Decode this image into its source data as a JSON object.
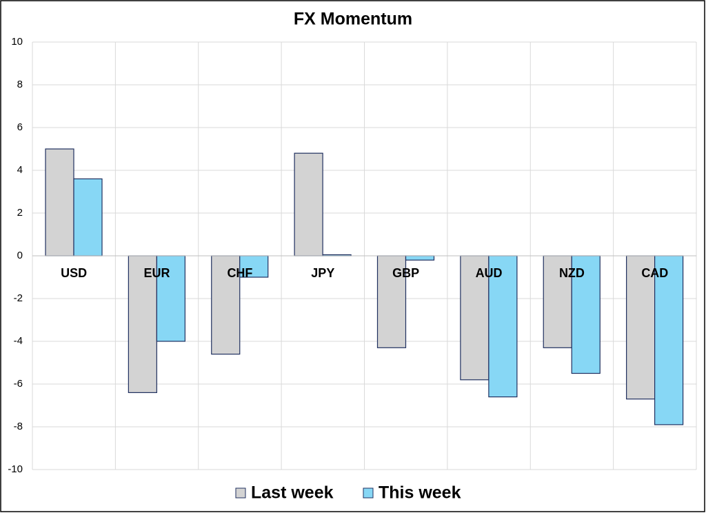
{
  "chart_data": {
    "type": "bar",
    "title": "FX Momentum",
    "categories": [
      "USD",
      "EUR",
      "CHF",
      "JPY",
      "GBP",
      "AUD",
      "NZD",
      "CAD"
    ],
    "series": [
      {
        "name": "Last week",
        "color": "#d3d3d3",
        "values": [
          5.0,
          -6.4,
          -4.6,
          4.8,
          -4.3,
          -5.8,
          -4.3,
          -6.7
        ]
      },
      {
        "name": "This week",
        "color": "#87d7f5",
        "values": [
          3.6,
          -4.0,
          -1.0,
          0.05,
          -0.2,
          -6.6,
          -5.5,
          -7.9
        ]
      }
    ],
    "ylim": [
      -10,
      10
    ],
    "yticks": [
      -10,
      -8,
      -6,
      -4,
      -2,
      0,
      2,
      4,
      6,
      8,
      10
    ],
    "grid": true,
    "legend": "bottom"
  }
}
